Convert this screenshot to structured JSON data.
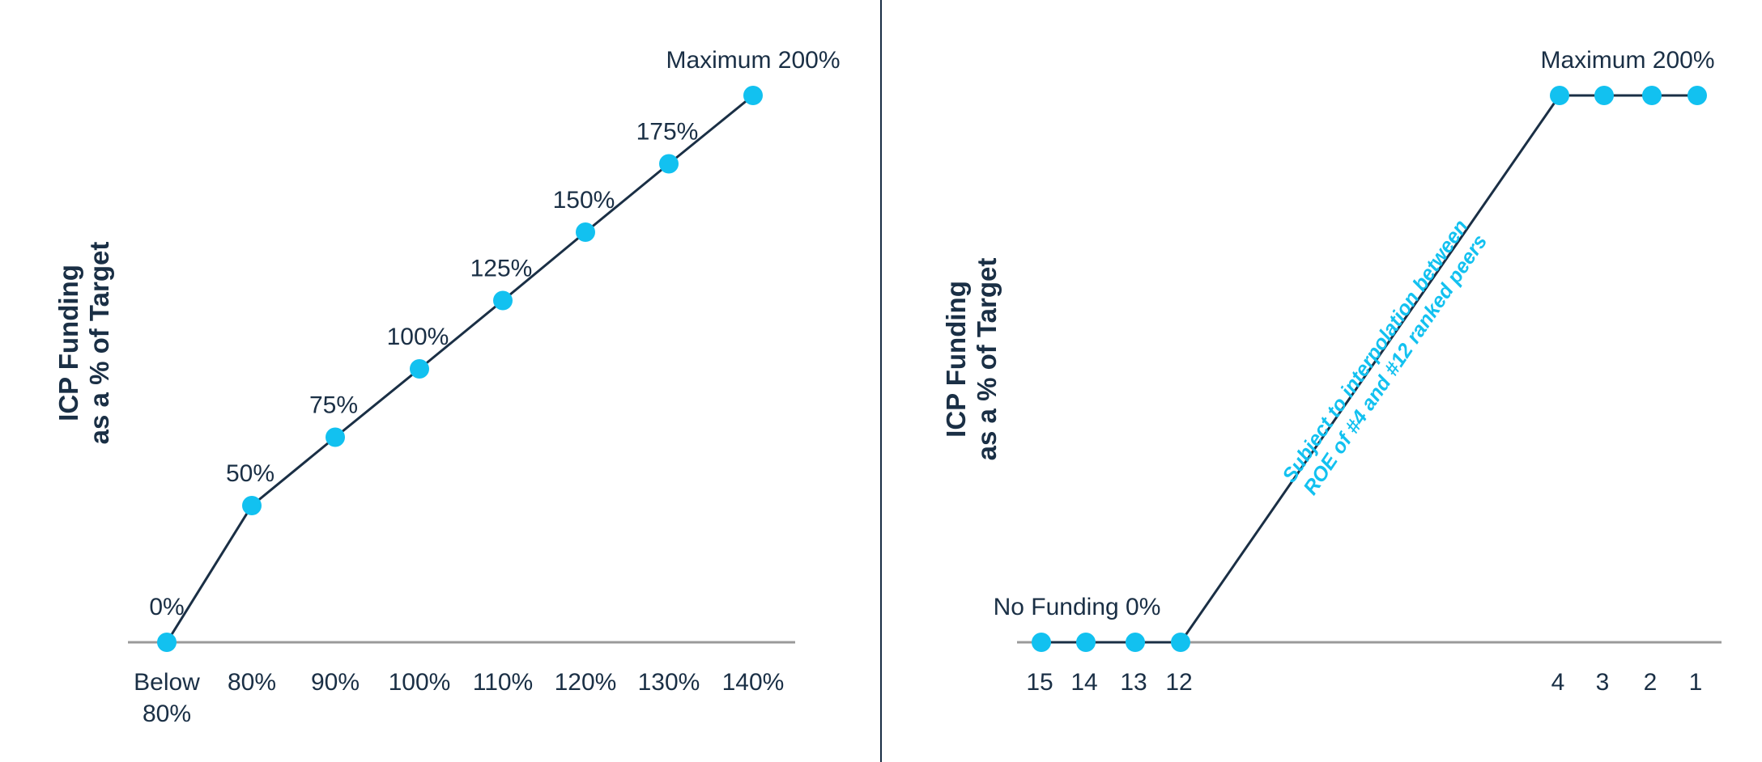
{
  "colors": {
    "line": "#1a2f45",
    "marker": "#12c1f0",
    "axis": "#9a9a9a",
    "annotation": "#12c1f0"
  },
  "chart_data": [
    {
      "type": "line",
      "ylabel": [
        "ICP Funding",
        "as a % of Target"
      ],
      "categories": [
        "Below 80%",
        "80%",
        "90%",
        "100%",
        "110%",
        "120%",
        "130%",
        "140%"
      ],
      "values": [
        0,
        50,
        75,
        100,
        125,
        150,
        175,
        200
      ],
      "point_labels": [
        "0%",
        "50%",
        "75%",
        "100%",
        "125%",
        "150%",
        "175%",
        "Maximum 200%"
      ],
      "ylim": [
        0,
        200
      ]
    },
    {
      "type": "line",
      "ylabel": [
        "ICP Funding",
        "as a % of Target"
      ],
      "categories": [
        "15",
        "14",
        "13",
        "12",
        "4",
        "3",
        "2",
        "1"
      ],
      "values": [
        0,
        0,
        0,
        0,
        200,
        200,
        200,
        200
      ],
      "point_labels": [
        {
          "text": "No Funding 0%"
        },
        {
          "text": "Maximum 200%"
        }
      ],
      "annotation": [
        "Subject to interpolation between",
        "ROE of #4 and #12 ranked peers"
      ],
      "ylim": [
        0,
        200
      ]
    }
  ]
}
